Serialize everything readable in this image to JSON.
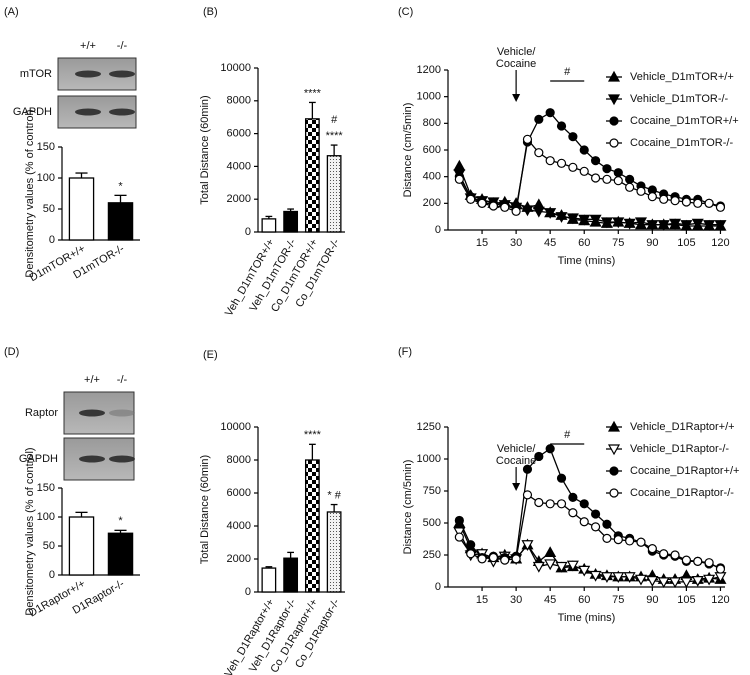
{
  "blots": [
    {
      "lanes": [
        "+/+",
        "-/-"
      ],
      "rows": [
        "mTOR",
        "GAPDH"
      ]
    },
    {
      "lanes": [
        "+/+",
        "-/-"
      ],
      "rows": [
        "Raptor",
        "GAPDH"
      ]
    }
  ],
  "chart_data": [
    {
      "type": "bar",
      "panel_label": "(A)",
      "ylabel": "Densitometry values (% of control)",
      "categories": [
        "D1mTOR+/+",
        "D1mTOR-/-"
      ],
      "values": [
        100,
        60
      ],
      "errors": [
        8,
        12
      ],
      "fills": [
        "#ffffff",
        "#000000"
      ],
      "ylim": [
        0,
        150
      ],
      "yticks": [
        0,
        50,
        100,
        150
      ],
      "annotations": [
        {
          "text": "*",
          "category": "D1mTOR-/-"
        }
      ]
    },
    {
      "type": "bar",
      "panel_label": "(B)",
      "ylabel": "Total Distance (60min)",
      "categories": [
        "Veh_D1mTOR+/+",
        "Veh_D1mTOR-/-",
        "Co_D1mTOR+/+",
        "Co_D1mTOR-/-"
      ],
      "values": [
        800,
        1250,
        6900,
        4650
      ],
      "errors": [
        150,
        150,
        1000,
        650
      ],
      "fills": [
        "#ffffff",
        "#000000",
        "checker",
        "dots"
      ],
      "ylim": [
        0,
        10000
      ],
      "yticks": [
        0,
        2000,
        4000,
        6000,
        8000,
        10000
      ],
      "annotations": [
        {
          "text": "****",
          "category": "Co_D1mTOR+/+"
        },
        {
          "text": "#",
          "category": "Co_D1mTOR-/-"
        },
        {
          "text": "****",
          "category": "Co_D1mTOR-/-"
        }
      ]
    },
    {
      "type": "line",
      "panel_label": "(C)",
      "xlabel": "Time (mins)",
      "ylabel": "Distance (cm/5min)",
      "x": [
        5,
        10,
        15,
        20,
        25,
        30,
        35,
        40,
        45,
        50,
        55,
        60,
        65,
        70,
        75,
        80,
        85,
        90,
        95,
        100,
        105,
        110,
        115,
        120
      ],
      "xlim": [
        0,
        122
      ],
      "xticks": [
        15,
        30,
        45,
        60,
        75,
        90,
        105,
        120
      ],
      "ylim": [
        0,
        1200
      ],
      "yticks": [
        0,
        200,
        400,
        600,
        800,
        1000,
        1200
      ],
      "series": [
        {
          "name": "Vehicle_D1mTOR+/+",
          "marker": "triangle-up",
          "fill": "#000000",
          "values": [
            480,
            260,
            230,
            200,
            210,
            200,
            170,
            190,
            130,
            110,
            80,
            70,
            60,
            50,
            60,
            50,
            40,
            40,
            40,
            40,
            30,
            30,
            30,
            30
          ]
        },
        {
          "name": "Vehicle_D1mTOR-/-",
          "marker": "triangle-down",
          "fill": "#000000",
          "values": [
            420,
            240,
            220,
            210,
            190,
            170,
            150,
            140,
            130,
            100,
            90,
            80,
            80,
            60,
            60,
            50,
            60,
            40,
            40,
            50,
            40,
            50,
            40,
            40
          ]
        },
        {
          "name": "Cocaine_D1mTOR+/+",
          "marker": "circle",
          "fill": "#000000",
          "values": [
            400,
            250,
            200,
            200,
            180,
            160,
            660,
            830,
            880,
            780,
            700,
            600,
            520,
            460,
            430,
            380,
            330,
            300,
            270,
            250,
            230,
            230,
            200,
            180
          ]
        },
        {
          "name": "Cocaine_D1mTOR-/-",
          "marker": "circle",
          "fill": "#ffffff",
          "values": [
            380,
            230,
            200,
            180,
            170,
            140,
            680,
            580,
            520,
            500,
            470,
            440,
            390,
            380,
            370,
            320,
            290,
            250,
            230,
            220,
            210,
            200,
            200,
            170
          ]
        }
      ],
      "arrow": {
        "text": [
          "Vehicle/",
          "Cocaine"
        ],
        "x": 30
      },
      "bracket": {
        "text": "#",
        "x": [
          45,
          60
        ]
      }
    },
    {
      "type": "bar",
      "panel_label": "(D)",
      "ylabel": "Densitometry values (% of control)",
      "categories": [
        "D1Raptor+/+",
        "D1Raptor-/-"
      ],
      "values": [
        100,
        72
      ],
      "errors": [
        8,
        5
      ],
      "fills": [
        "#ffffff",
        "#000000"
      ],
      "ylim": [
        0,
        150
      ],
      "yticks": [
        0,
        50,
        100,
        150
      ],
      "annotations": [
        {
          "text": "*",
          "category": "D1Raptor-/-"
        }
      ]
    },
    {
      "type": "bar",
      "panel_label": "(E)",
      "ylabel": "Total  Distance (60min)",
      "categories": [
        "Veh_D1Raptor+/+",
        "Veh_D1Raptor-/-",
        "Co_D1Raptor+/+",
        "Co_D1Raptor-/-"
      ],
      "values": [
        1450,
        2050,
        8000,
        4850
      ],
      "errors": [
        80,
        350,
        950,
        450
      ],
      "fills": [
        "#ffffff",
        "#000000",
        "checker",
        "dots"
      ],
      "ylim": [
        0,
        10000
      ],
      "yticks": [
        0,
        2000,
        4000,
        6000,
        8000,
        10000
      ],
      "annotations": [
        {
          "text": "****",
          "category": "Co_D1Raptor+/+"
        },
        {
          "text": "* #",
          "category": "Co_D1Raptor-/-"
        }
      ]
    },
    {
      "type": "line",
      "panel_label": "(F)",
      "xlabel": "Time (mins)",
      "ylabel": "Distance (cm/5min)",
      "x": [
        5,
        10,
        15,
        20,
        25,
        30,
        35,
        40,
        45,
        50,
        55,
        60,
        65,
        70,
        75,
        80,
        85,
        90,
        95,
        100,
        105,
        110,
        115,
        120
      ],
      "xlim": [
        0,
        122
      ],
      "xticks": [
        15,
        30,
        45,
        60,
        75,
        90,
        105,
        120
      ],
      "ylim": [
        0,
        1250
      ],
      "yticks": [
        0,
        250,
        500,
        750,
        1000,
        1250
      ],
      "series": [
        {
          "name": "Vehicle_D1Raptor+/+",
          "marker": "triangle-up",
          "fill": "#000000",
          "values": [
            500,
            300,
            260,
            230,
            250,
            220,
            330,
            200,
            270,
            150,
            160,
            140,
            100,
            90,
            80,
            80,
            80,
            90,
            60,
            60,
            90,
            60,
            70,
            60
          ]
        },
        {
          "name": "Vehicle_D1Raptor-/-",
          "marker": "triangle-down",
          "fill": "#ffffff",
          "values": [
            430,
            250,
            260,
            200,
            240,
            220,
            330,
            160,
            180,
            160,
            170,
            130,
            90,
            80,
            80,
            80,
            60,
            50,
            40,
            40,
            40,
            50,
            60,
            80
          ]
        },
        {
          "name": "Cocaine_D1Raptor+/+",
          "marker": "circle",
          "fill": "#000000",
          "values": [
            520,
            330,
            230,
            240,
            230,
            240,
            920,
            1020,
            1080,
            850,
            700,
            650,
            570,
            490,
            400,
            380,
            350,
            280,
            250,
            240,
            200,
            200,
            180,
            150
          ]
        },
        {
          "name": "Cocaine_D1Raptor-/-",
          "marker": "circle",
          "fill": "#ffffff",
          "values": [
            390,
            260,
            220,
            230,
            210,
            220,
            720,
            660,
            650,
            650,
            580,
            510,
            470,
            380,
            370,
            360,
            350,
            300,
            260,
            250,
            210,
            200,
            190,
            140
          ]
        }
      ],
      "arrow": {
        "text": [
          "Vehicle/",
          "Cocaine"
        ],
        "x": 30
      },
      "bracket": {
        "text": "#",
        "x": [
          45,
          60
        ]
      }
    }
  ]
}
